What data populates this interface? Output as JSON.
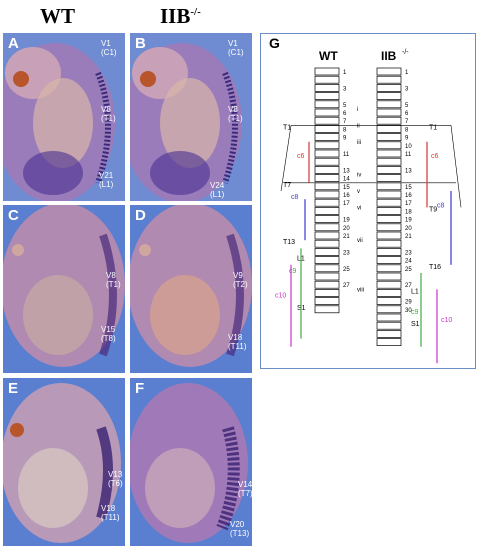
{
  "headers": {
    "wt": "WT",
    "iib": "IIB",
    "iib_sup": "-/-"
  },
  "panels": {
    "A": {
      "label": "A",
      "annotations": [
        {
          "v": "V1",
          "s": "(C1)"
        },
        {
          "v": "V8",
          "s": "(T1)"
        },
        {
          "v": "V21",
          "s": "(L1)"
        }
      ]
    },
    "B": {
      "label": "B",
      "annotations": [
        {
          "v": "V1",
          "s": "(C1)"
        },
        {
          "v": "V8",
          "s": "(T1)"
        },
        {
          "v": "V24",
          "s": "(L1)"
        }
      ]
    },
    "C": {
      "label": "C",
      "annotations": [
        {
          "v": "V8",
          "s": "(T1)"
        },
        {
          "v": "V15",
          "s": "(T8)"
        }
      ]
    },
    "D": {
      "label": "D",
      "annotations": [
        {
          "v": "V9",
          "s": "(T2)"
        },
        {
          "v": "V18",
          "s": "(T11)"
        }
      ]
    },
    "E": {
      "label": "E",
      "annotations": [
        {
          "v": "V13",
          "s": "(T6)"
        },
        {
          "v": "V18",
          "s": "(T11)"
        }
      ]
    },
    "F": {
      "label": "F",
      "annotations": [
        {
          "v": "V14",
          "s": "(T7)"
        },
        {
          "v": "V20",
          "s": "(T13)"
        }
      ]
    }
  },
  "diagram": {
    "label": "G",
    "wt_title": "WT",
    "iib_title": "IIB",
    "iib_sup": "-/-",
    "wt_numbers": [
      "1",
      "3",
      "5",
      "6",
      "7",
      "8",
      "9",
      "11",
      "13",
      "14",
      "15",
      "16",
      "17",
      "19",
      "20",
      "21",
      "23",
      "25",
      "27"
    ],
    "iib_numbers": [
      "1",
      "3",
      "5",
      "6",
      "7",
      "8",
      "9",
      "10",
      "11",
      "13",
      "15",
      "16",
      "17",
      "18",
      "19",
      "20",
      "21",
      "23",
      "24",
      "25",
      "27",
      "29",
      "30"
    ],
    "markers_wt": [
      "T1",
      "T7",
      "T13",
      "L1",
      "S1"
    ],
    "markers_iib": [
      "T1",
      "T9",
      "T16",
      "L1",
      "S1"
    ],
    "roman": [
      "i",
      "ii",
      "iii",
      "iv",
      "v",
      "vi",
      "vii",
      "viii"
    ],
    "lines": {
      "c6": "c6",
      "c8": "c8",
      "c9": "c9",
      "c10": "c10"
    },
    "colors": {
      "c6": "#d33",
      "c8": "#3a3ad0",
      "c9": "#4a4",
      "c10": "#c3c"
    }
  }
}
